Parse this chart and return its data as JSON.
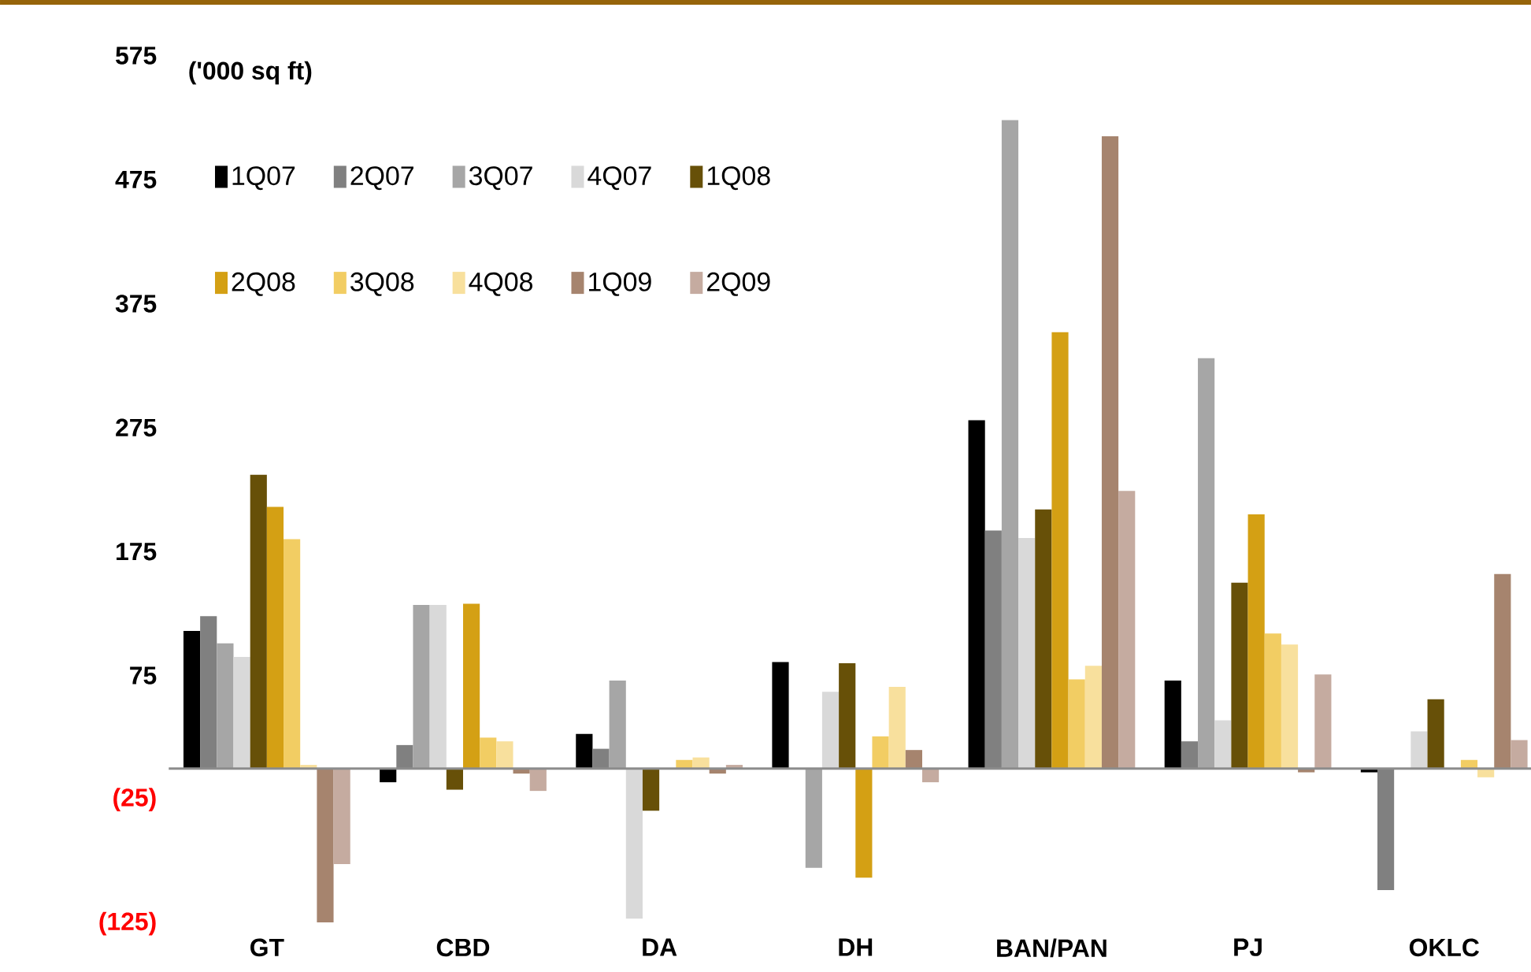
{
  "chart_data": {
    "type": "bar",
    "ylabel": "('000 sq ft)",
    "categories": [
      "GT",
      "CBD",
      "DA",
      "DH",
      "BAN/PAN",
      "PJ",
      "OKLC"
    ],
    "series": [
      {
        "name": "1Q07",
        "color": "#000000",
        "values": [
          111,
          -11,
          28,
          86,
          281,
          71,
          -3
        ]
      },
      {
        "name": "2Q07",
        "color": "#808080",
        "values": [
          123,
          19,
          16,
          0,
          192,
          22,
          -98
        ]
      },
      {
        "name": "3Q07",
        "color": "#a6a6a6",
        "values": [
          101,
          132,
          71,
          -80,
          523,
          331,
          null
        ]
      },
      {
        "name": "4Q07",
        "color": "#d9d9d9",
        "values": [
          90,
          132,
          -121,
          62,
          186,
          39,
          30
        ]
      },
      {
        "name": "1Q08",
        "color": "#675008",
        "values": [
          237,
          -17,
          -34,
          85,
          209,
          150,
          56
        ]
      },
      {
        "name": "2Q08",
        "color": "#d4a014",
        "values": [
          211,
          133,
          0,
          -88,
          352,
          205,
          0
        ]
      },
      {
        "name": "3Q08",
        "color": "#f2cd63",
        "values": [
          185,
          25,
          7,
          26,
          72,
          109,
          7
        ]
      },
      {
        "name": "4Q08",
        "color": "#f8e09d",
        "values": [
          3,
          22,
          9,
          66,
          83,
          100,
          -7
        ]
      },
      {
        "name": "1Q09",
        "color": "#a6846e",
        "values": [
          -124,
          -4,
          -4,
          15,
          510,
          -3,
          157
        ]
      },
      {
        "name": "2Q09",
        "color": "#c5aba0",
        "values": [
          -77,
          -18,
          3,
          -11,
          224,
          76,
          23
        ]
      }
    ],
    "ylim": [
      -125,
      575
    ],
    "yticks": [
      {
        "value": -125,
        "label": "(125)"
      },
      {
        "value": -25,
        "label": "(25)"
      },
      75,
      175,
      275,
      375,
      475,
      575
    ],
    "grid": false,
    "legend": "top left"
  }
}
